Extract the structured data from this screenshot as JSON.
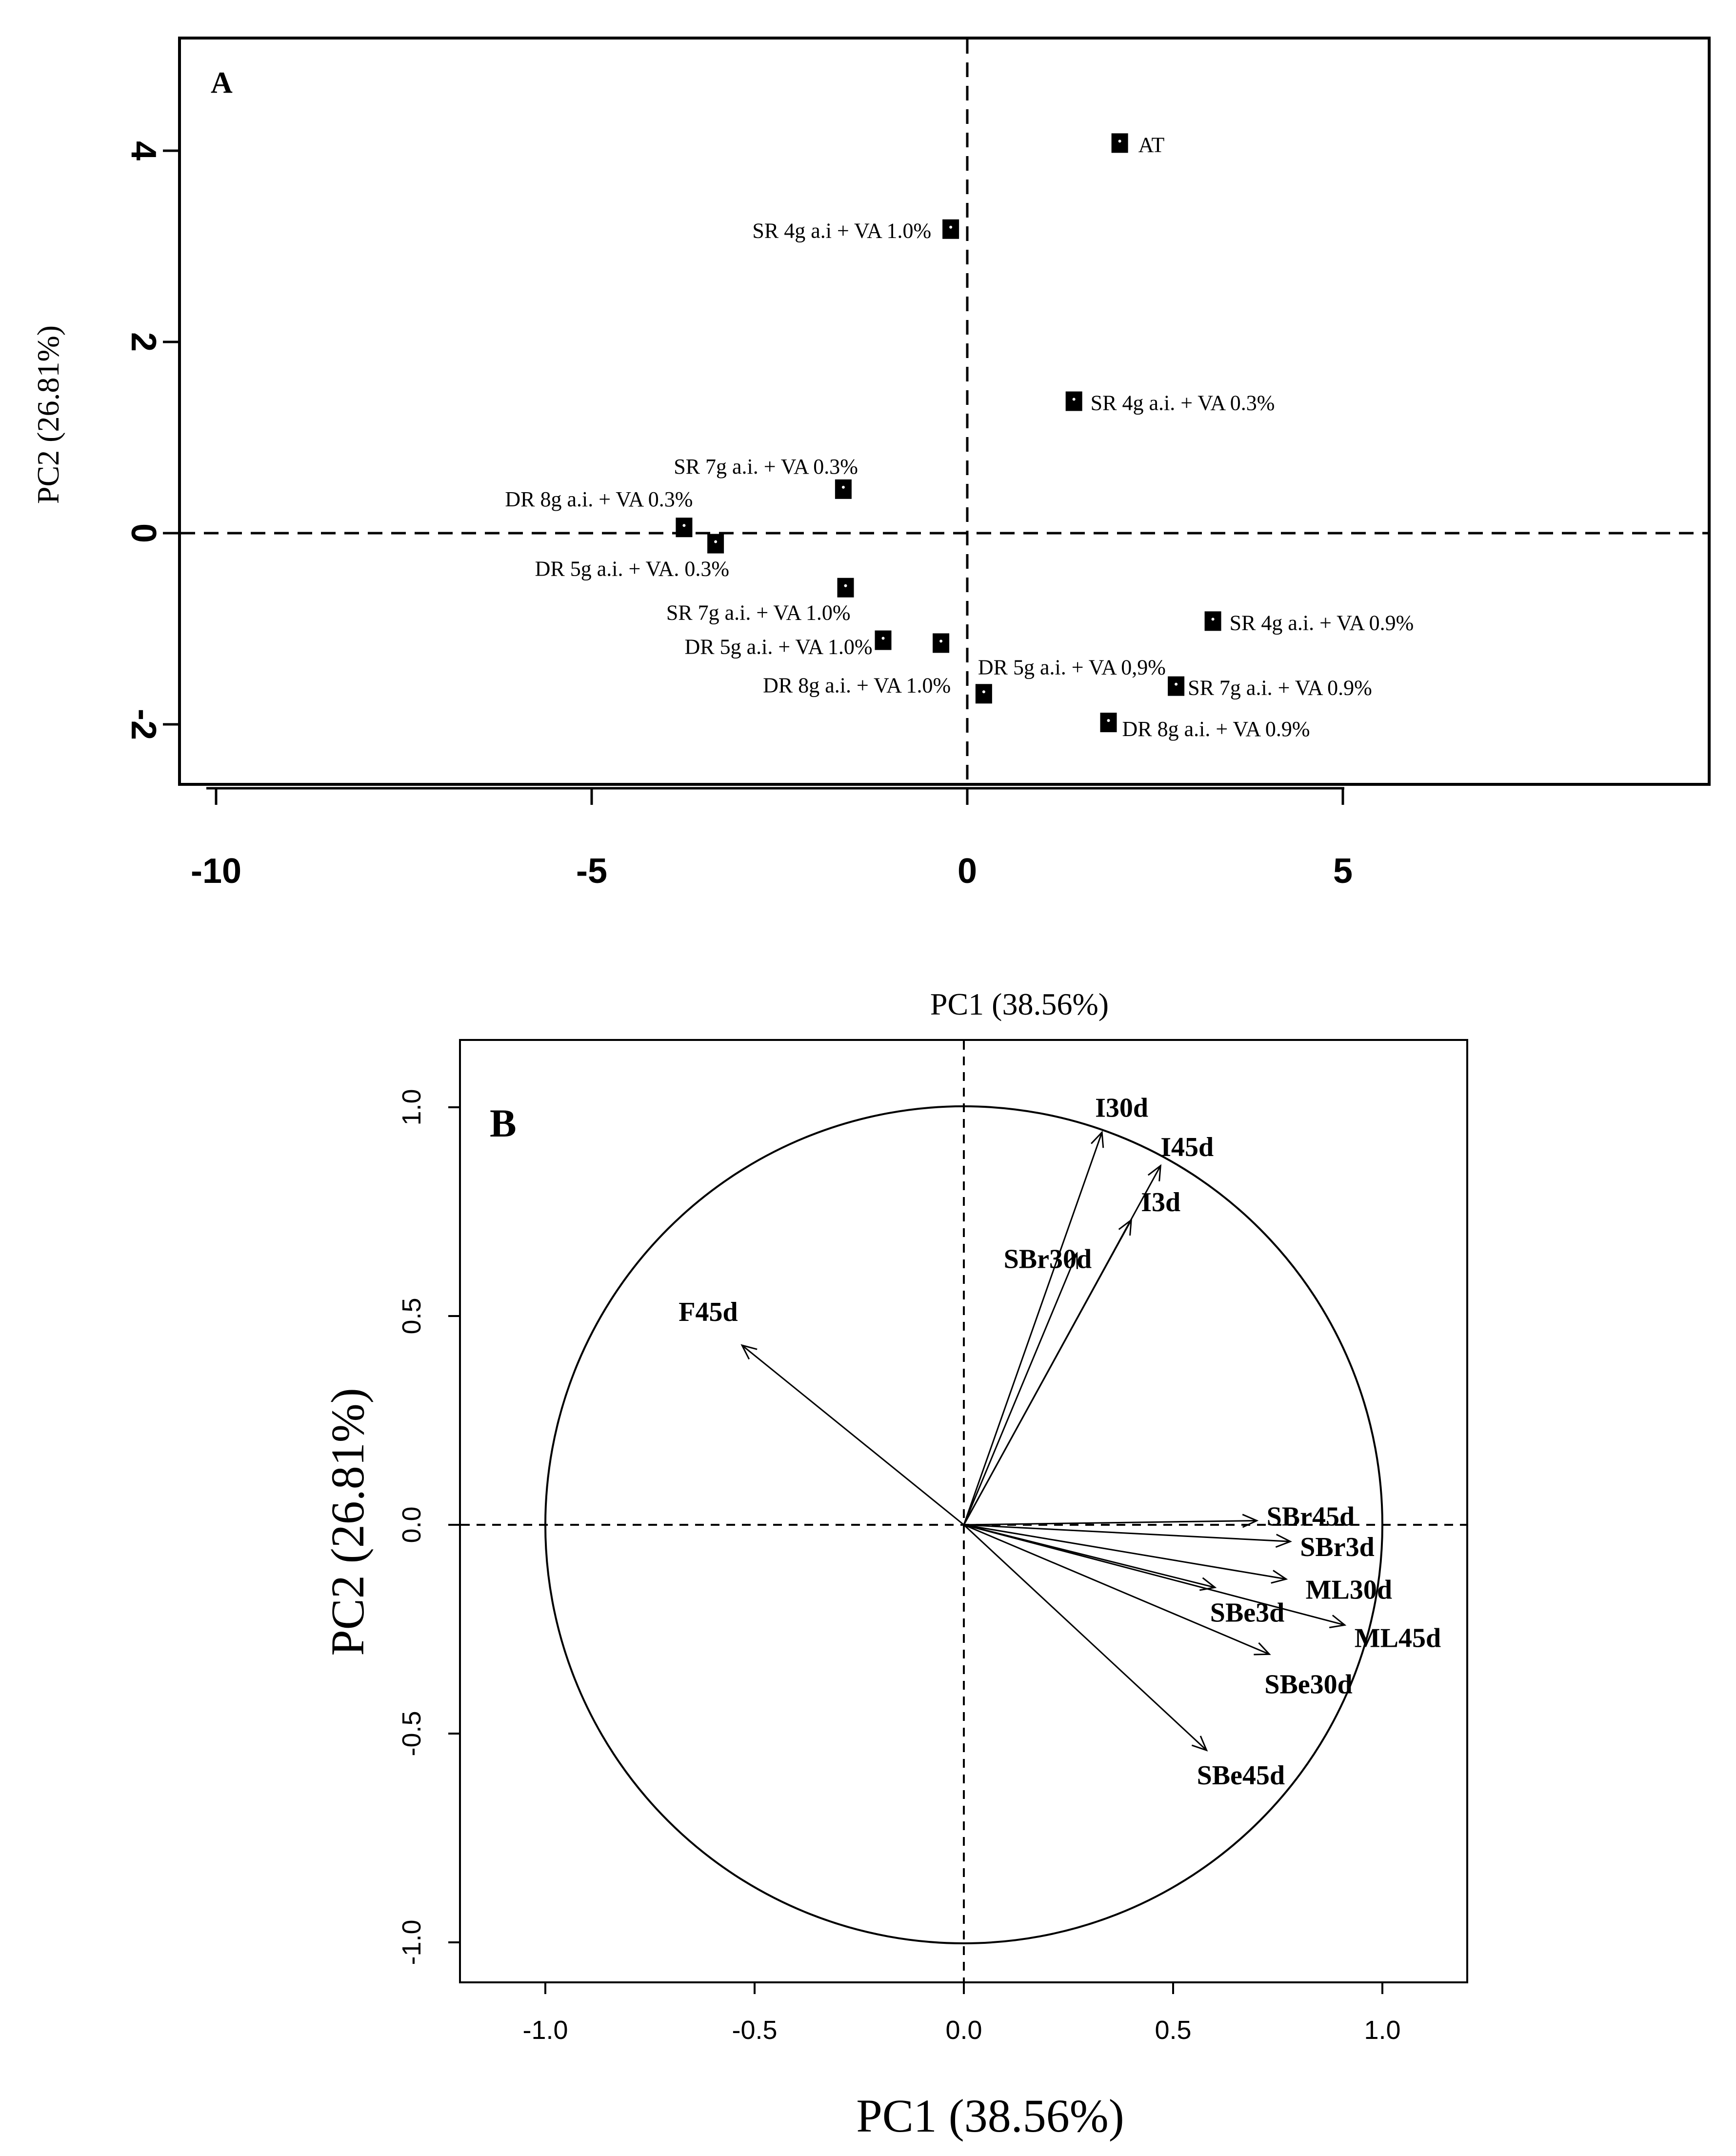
{
  "chart_data": [
    {
      "type": "scatter",
      "panel": "A",
      "xlabel": "PC1 (38.56%)",
      "ylabel": "PC2 (26.81%)",
      "xlim": [
        -10.7,
        9.5
      ],
      "ylim": [
        -2.65,
        5.0
      ],
      "xticks": [
        -10,
        -5,
        0,
        5
      ],
      "yticks": [
        -2,
        0,
        2,
        4
      ],
      "reference_lines": {
        "x": 0,
        "y": 0
      },
      "points": [
        {
          "label": "AT",
          "x": 2.03,
          "y": 4.08
        },
        {
          "label": "SR 4g a.i + VA 1.0%",
          "x": -0.22,
          "y": 3.18
        },
        {
          "label": "SR 4g a.i. + VA 0.3%",
          "x": 1.42,
          "y": 1.38
        },
        {
          "label": "SR 7g a.i. + VA 0.3%",
          "x": -1.65,
          "y": 0.46
        },
        {
          "label": "DR 8g a.i. + VA 0.3%",
          "x": -3.77,
          "y": 0.06
        },
        {
          "label": "DR 5g a.i. + VA. 0.3%",
          "x": -3.35,
          "y": -0.11
        },
        {
          "label": "SR 7g a.i. + VA 1.0%",
          "x": -1.62,
          "y": -0.57
        },
        {
          "label": "DR 5g a.i. + VA 1.0%",
          "x": -1.12,
          "y": -1.12
        },
        {
          "label": "DR 8g a.i. + VA 1.0%",
          "x": -0.35,
          "y": -1.15
        },
        {
          "label": "DR 5g a.i. + VA 0,9%",
          "x": 0.22,
          "y": -1.68
        },
        {
          "label": "SR 4g a.i. + VA 0.9%",
          "x": 3.27,
          "y": -0.92
        },
        {
          "label": "SR 7g a.i. + VA 0.9%",
          "x": 2.78,
          "y": -1.6
        },
        {
          "label": "DR 8g a.i. + VA 0.9%",
          "x": 1.88,
          "y": -1.98
        }
      ]
    },
    {
      "type": "biplot",
      "panel": "B",
      "xlabel": "PC1 (38.56%)",
      "ylabel": "PC2 (26.81%)",
      "xlim": [
        -1.2,
        1.2
      ],
      "ylim": [
        -1.1,
        1.1
      ],
      "xtick_labels": [
        "-1.0",
        "-0.5",
        "0.0",
        "0.5",
        "1.0"
      ],
      "ytick_labels": [
        "-1.0",
        "-0.5",
        "0.0",
        "0.5",
        "1.0"
      ],
      "unit_circle_radius": 1.0,
      "vectors": [
        {
          "label": "I30d",
          "x": 0.33,
          "y": 0.94
        },
        {
          "label": "I45d",
          "x": 0.47,
          "y": 0.86
        },
        {
          "label": "I3d",
          "x": 0.4,
          "y": 0.73
        },
        {
          "label": "SBr30d",
          "x": 0.27,
          "y": 0.65
        },
        {
          "label": "F45d",
          "x": -0.53,
          "y": 0.43
        },
        {
          "label": "SBr45d",
          "x": 0.7,
          "y": 0.01
        },
        {
          "label": "SBr3d",
          "x": 0.78,
          "y": -0.04
        },
        {
          "label": "ML30d",
          "x": 0.77,
          "y": -0.13
        },
        {
          "label": "SBe3d",
          "x": 0.6,
          "y": -0.15
        },
        {
          "label": "ML45d",
          "x": 0.91,
          "y": -0.24
        },
        {
          "label": "SBe30d",
          "x": 0.73,
          "y": -0.31
        },
        {
          "label": "SBe45d",
          "x": 0.58,
          "y": -0.54
        }
      ]
    }
  ],
  "panel_a_letter": "A",
  "panel_b_letter": "B"
}
